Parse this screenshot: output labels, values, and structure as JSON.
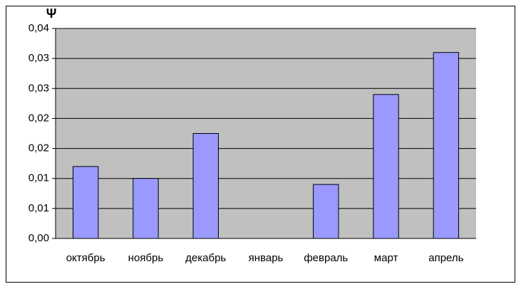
{
  "chart_data": {
    "type": "bar",
    "y_label": "Ψ",
    "categories": [
      "октябрь",
      "ноябрь",
      "декабрь",
      "январь",
      "февраль",
      "март",
      "апрель"
    ],
    "values": [
      0.012,
      0.01,
      0.0175,
      0,
      0.009,
      0.024,
      0.031
    ],
    "color": "#9999ff",
    "ylim": [
      0,
      0.035
    ],
    "yticks": [
      {
        "value": 0,
        "label": "0,00"
      },
      {
        "value": 0.005,
        "label": "0,01"
      },
      {
        "value": 0.01,
        "label": "0,01"
      },
      {
        "value": 0.015,
        "label": "0,02"
      },
      {
        "value": 0.02,
        "label": "0,02"
      },
      {
        "value": 0.025,
        "label": "0,03"
      },
      {
        "value": 0.03,
        "label": "0,03"
      },
      {
        "value": 0.035,
        "label": "0,04"
      }
    ],
    "grid": true
  }
}
